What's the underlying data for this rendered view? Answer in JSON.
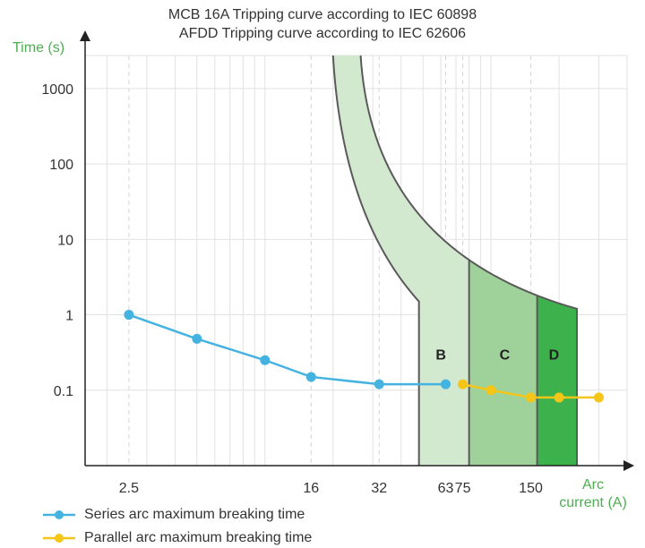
{
  "chart_data": {
    "type": "line",
    "title": "MCB 16A Tripping curve according to IEC 60898",
    "subtitle": "AFDD Tripping curve according to IEC 62606",
    "ylabel": "Time (s)",
    "xlabel_line1": "Arc",
    "xlabel_line2": "current (A)",
    "x_scale": "log",
    "y_scale": "log",
    "xlim": [
      1.6,
      400
    ],
    "ylim": [
      0.01,
      5000
    ],
    "x_ticks": [
      2.5,
      16,
      32,
      63,
      75,
      150
    ],
    "x_tick_labels": [
      "2.5",
      "16",
      "32",
      "63",
      "75",
      "150"
    ],
    "y_ticks": [
      0.1,
      1,
      10,
      100,
      1000
    ],
    "y_tick_labels": [
      "0.1",
      "1",
      "10",
      "100",
      "1000"
    ],
    "grid": true,
    "legend_position": "bottom-left",
    "series": [
      {
        "name": "Series arc maximum breaking time",
        "color": "#45b3e0",
        "x": [
          2.5,
          5,
          10,
          16,
          32,
          63
        ],
        "y": [
          1.0,
          0.48,
          0.25,
          0.15,
          0.12,
          0.12
        ]
      },
      {
        "name": "Parallel arc maximum breaking time",
        "color": "#f5c518",
        "x": [
          75,
          100,
          150,
          200,
          300
        ],
        "y": [
          0.12,
          0.1,
          0.08,
          0.08,
          0.08
        ]
      }
    ],
    "regions": [
      {
        "label": "B",
        "color": "#d2e8cf",
        "x_from": 48,
        "x_to": 80,
        "label_x": 60,
        "label_y": 0.3
      },
      {
        "label": "C",
        "color": "#9fd19a",
        "x_from": 80,
        "x_to": 160,
        "label_x": 115,
        "label_y": 0.3
      },
      {
        "label": "D",
        "color": "#3db14b",
        "x_from": 160,
        "x_to": 240,
        "label_x": 190,
        "label_y": 0.3
      }
    ],
    "colors": {
      "axis": "#222222",
      "grid": "#e2e2e2",
      "band_edge": "#5a5a5a",
      "axis_title": "#4caf50",
      "tick_text": "#333333"
    }
  }
}
